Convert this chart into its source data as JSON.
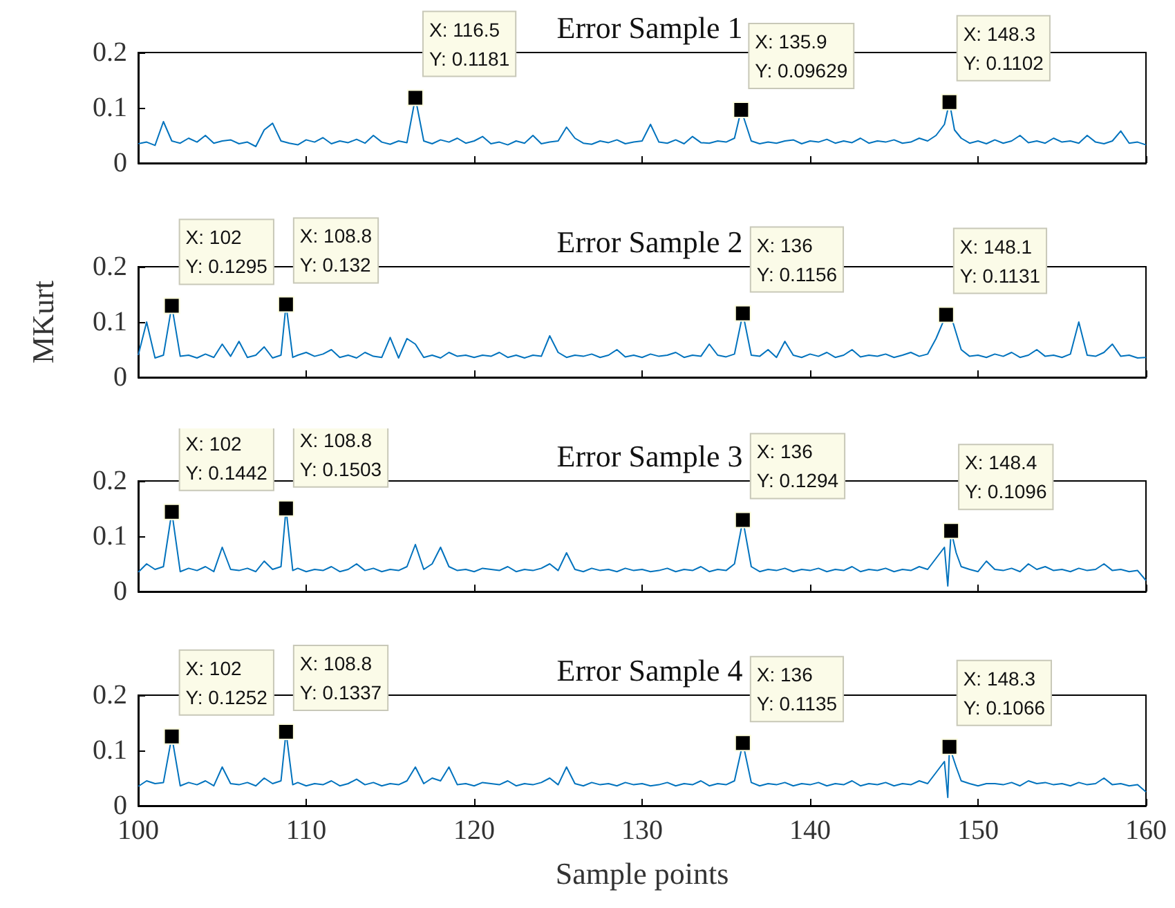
{
  "chart_data": [
    {
      "type": "line",
      "title": "Error Sample 1",
      "xlim": [
        100,
        160
      ],
      "xticks": [
        100,
        110,
        120,
        130,
        140,
        150,
        160
      ],
      "ylim": [
        0,
        0.2
      ],
      "yticks": [
        0,
        0.1,
        0.2
      ],
      "tick_labels": "y",
      "series": [
        {
          "color": "#0072bd",
          "x": [
            100,
            100.5,
            101,
            101.5,
            102,
            102.5,
            103,
            103.5,
            104,
            104.5,
            105,
            105.5,
            106,
            106.5,
            107,
            107.5,
            108,
            108.5,
            109,
            109.5,
            110,
            110.5,
            111,
            111.5,
            112,
            112.5,
            113,
            113.5,
            114,
            114.5,
            115,
            115.5,
            116,
            116.5,
            117,
            117.5,
            118,
            118.5,
            119,
            119.5,
            120,
            120.5,
            121,
            121.5,
            122,
            122.5,
            123,
            123.5,
            124,
            124.5,
            125,
            125.5,
            126,
            126.5,
            127,
            127.5,
            128,
            128.5,
            129,
            129.5,
            130,
            130.5,
            131,
            131.5,
            132,
            132.5,
            133,
            133.5,
            134,
            134.5,
            135,
            135.5,
            135.9,
            136.5,
            137,
            137.5,
            138,
            138.5,
            139,
            139.5,
            140,
            140.5,
            141,
            141.5,
            142,
            142.5,
            143,
            143.5,
            144,
            144.5,
            145,
            145.5,
            146,
            146.5,
            147,
            147.5,
            148,
            148.3,
            148.6,
            149,
            149.5,
            150,
            150.5,
            151,
            151.5,
            152,
            152.5,
            153,
            153.5,
            154,
            154.5,
            155,
            155.5,
            156,
            156.5,
            157,
            157.5,
            158,
            158.5,
            159,
            159.5,
            160
          ],
          "values": [
            0.035,
            0.038,
            0.032,
            0.075,
            0.04,
            0.036,
            0.045,
            0.038,
            0.05,
            0.036,
            0.04,
            0.042,
            0.035,
            0.038,
            0.03,
            0.06,
            0.072,
            0.04,
            0.036,
            0.033,
            0.042,
            0.038,
            0.046,
            0.035,
            0.04,
            0.037,
            0.043,
            0.036,
            0.05,
            0.038,
            0.034,
            0.04,
            0.037,
            0.1181,
            0.04,
            0.035,
            0.042,
            0.038,
            0.045,
            0.036,
            0.04,
            0.048,
            0.035,
            0.038,
            0.033,
            0.04,
            0.036,
            0.05,
            0.035,
            0.038,
            0.04,
            0.065,
            0.045,
            0.036,
            0.034,
            0.04,
            0.037,
            0.042,
            0.035,
            0.038,
            0.04,
            0.07,
            0.038,
            0.036,
            0.042,
            0.035,
            0.048,
            0.037,
            0.036,
            0.04,
            0.038,
            0.045,
            0.09629,
            0.04,
            0.035,
            0.038,
            0.036,
            0.04,
            0.042,
            0.035,
            0.04,
            0.038,
            0.043,
            0.036,
            0.04,
            0.037,
            0.045,
            0.036,
            0.04,
            0.038,
            0.042,
            0.036,
            0.038,
            0.045,
            0.04,
            0.05,
            0.07,
            0.1102,
            0.06,
            0.045,
            0.036,
            0.04,
            0.035,
            0.042,
            0.036,
            0.04,
            0.05,
            0.037,
            0.04,
            0.036,
            0.045,
            0.038,
            0.04,
            0.036,
            0.05,
            0.038,
            0.035,
            0.04,
            0.058,
            0.036,
            0.038,
            0.033
          ]
        }
      ],
      "annotations": [
        {
          "text": "X: 116.5\nY: 0.1181",
          "x": 116.5,
          "y": 0.1181
        },
        {
          "text": "X: 135.9\nY: 0.09629",
          "x": 135.9,
          "y": 0.09629
        },
        {
          "text": "X: 148.3\nY: 0.1102",
          "x": 148.3,
          "y": 0.1102
        }
      ]
    },
    {
      "type": "line",
      "title": "Error Sample 2",
      "ylabel": "MKurt",
      "xlim": [
        100,
        160
      ],
      "xticks": [
        100,
        110,
        120,
        130,
        140,
        150,
        160
      ],
      "ylim": [
        0,
        0.2
      ],
      "yticks": [
        0,
        0.1,
        0.2
      ],
      "tick_labels": "y",
      "series": [
        {
          "color": "#0072bd",
          "x": [
            100,
            100.5,
            101,
            101.5,
            102,
            102.5,
            103,
            103.5,
            104,
            104.5,
            105,
            105.5,
            106,
            106.5,
            107,
            107.5,
            108,
            108.5,
            108.8,
            109.2,
            109.5,
            110,
            110.5,
            111,
            111.5,
            112,
            112.5,
            113,
            113.5,
            114,
            114.5,
            115,
            115.5,
            116,
            116.5,
            117,
            117.5,
            118,
            118.5,
            119,
            119.5,
            120,
            120.5,
            121,
            121.5,
            122,
            122.5,
            123,
            123.5,
            124,
            124.5,
            125,
            125.5,
            126,
            126.5,
            127,
            127.5,
            128,
            128.5,
            129,
            129.5,
            130,
            130.5,
            131,
            131.5,
            132,
            132.5,
            133,
            133.5,
            134,
            134.5,
            135,
            135.5,
            136,
            136.5,
            137,
            137.5,
            138,
            138.5,
            139,
            139.5,
            140,
            140.5,
            141,
            141.5,
            142,
            142.5,
            143,
            143.5,
            144,
            144.5,
            145,
            145.5,
            146,
            146.5,
            147,
            147.5,
            148.1,
            148.5,
            149,
            149.5,
            150,
            150.5,
            151,
            151.5,
            152,
            152.5,
            153,
            153.5,
            154,
            154.5,
            155,
            155.5,
            156,
            156.5,
            157,
            157.5,
            158,
            158.5,
            159,
            159.5,
            160
          ],
          "values": [
            0.04,
            0.1,
            0.035,
            0.04,
            0.1295,
            0.038,
            0.04,
            0.035,
            0.042,
            0.036,
            0.06,
            0.038,
            0.065,
            0.036,
            0.04,
            0.055,
            0.035,
            0.04,
            0.132,
            0.036,
            0.04,
            0.045,
            0.038,
            0.042,
            0.05,
            0.036,
            0.04,
            0.035,
            0.045,
            0.038,
            0.036,
            0.072,
            0.035,
            0.07,
            0.06,
            0.036,
            0.04,
            0.035,
            0.045,
            0.038,
            0.04,
            0.036,
            0.04,
            0.038,
            0.045,
            0.036,
            0.04,
            0.035,
            0.04,
            0.038,
            0.075,
            0.045,
            0.036,
            0.04,
            0.038,
            0.042,
            0.036,
            0.04,
            0.05,
            0.037,
            0.04,
            0.036,
            0.042,
            0.038,
            0.04,
            0.045,
            0.036,
            0.04,
            0.038,
            0.06,
            0.04,
            0.037,
            0.042,
            0.1156,
            0.04,
            0.038,
            0.05,
            0.036,
            0.065,
            0.04,
            0.036,
            0.042,
            0.038,
            0.045,
            0.036,
            0.04,
            0.05,
            0.037,
            0.04,
            0.038,
            0.042,
            0.036,
            0.04,
            0.045,
            0.038,
            0.042,
            0.07,
            0.1131,
            0.1,
            0.05,
            0.038,
            0.04,
            0.036,
            0.042,
            0.038,
            0.045,
            0.036,
            0.04,
            0.05,
            0.038,
            0.04,
            0.036,
            0.042,
            0.1,
            0.04,
            0.038,
            0.045,
            0.06,
            0.038,
            0.04,
            0.035,
            0.036
          ]
        }
      ],
      "annotations": [
        {
          "text": "X: 102\nY: 0.1295",
          "x": 102,
          "y": 0.1295
        },
        {
          "text": "X: 108.8\nY: 0.132",
          "x": 108.8,
          "y": 0.132
        },
        {
          "text": "X: 136\nY: 0.1156",
          "x": 136,
          "y": 0.1156
        },
        {
          "text": "X: 148.1\nY: 0.1131",
          "x": 148.1,
          "y": 0.1131
        }
      ]
    },
    {
      "type": "line",
      "title": "Error Sample 3",
      "xlim": [
        100,
        160
      ],
      "xticks": [
        100,
        110,
        120,
        130,
        140,
        150,
        160
      ],
      "ylim": [
        0,
        0.2
      ],
      "yticks": [
        0,
        0.1,
        0.2
      ],
      "tick_labels": "y",
      "series": [
        {
          "color": "#0072bd",
          "x": [
            100,
            100.5,
            101,
            101.5,
            102,
            102.5,
            103,
            103.5,
            104,
            104.5,
            105,
            105.5,
            106,
            106.5,
            107,
            107.5,
            108,
            108.5,
            108.8,
            109.2,
            109.5,
            110,
            110.5,
            111,
            111.5,
            112,
            112.5,
            113,
            113.5,
            114,
            114.5,
            115,
            115.5,
            116,
            116.5,
            117,
            117.5,
            118,
            118.5,
            119,
            119.5,
            120,
            120.5,
            121,
            121.5,
            122,
            122.5,
            123,
            123.5,
            124,
            124.5,
            125,
            125.5,
            126,
            126.5,
            127,
            127.5,
            128,
            128.5,
            129,
            129.5,
            130,
            130.5,
            131,
            131.5,
            132,
            132.5,
            133,
            133.5,
            134,
            134.5,
            135,
            135.5,
            136,
            136.5,
            137,
            137.5,
            138,
            138.5,
            139,
            139.5,
            140,
            140.5,
            141,
            141.5,
            142,
            142.5,
            143,
            143.5,
            144,
            144.5,
            145,
            145.5,
            146,
            146.5,
            147,
            147.5,
            148,
            148.2,
            148.4,
            148.7,
            149,
            149.5,
            150,
            150.5,
            151,
            151.5,
            152,
            152.5,
            153,
            153.5,
            154,
            154.5,
            155,
            155.5,
            156,
            156.5,
            157,
            157.5,
            158,
            158.5,
            159,
            159.5,
            160
          ],
          "values": [
            0.035,
            0.05,
            0.04,
            0.045,
            0.1442,
            0.036,
            0.042,
            0.038,
            0.045,
            0.036,
            0.08,
            0.04,
            0.038,
            0.042,
            0.036,
            0.055,
            0.04,
            0.045,
            0.1503,
            0.038,
            0.042,
            0.036,
            0.04,
            0.038,
            0.045,
            0.036,
            0.04,
            0.05,
            0.038,
            0.042,
            0.036,
            0.04,
            0.038,
            0.045,
            0.085,
            0.04,
            0.05,
            0.08,
            0.045,
            0.038,
            0.04,
            0.036,
            0.042,
            0.04,
            0.038,
            0.045,
            0.036,
            0.04,
            0.038,
            0.042,
            0.05,
            0.038,
            0.07,
            0.04,
            0.036,
            0.042,
            0.038,
            0.04,
            0.036,
            0.042,
            0.038,
            0.04,
            0.036,
            0.038,
            0.042,
            0.036,
            0.04,
            0.038,
            0.045,
            0.036,
            0.04,
            0.038,
            0.05,
            0.1294,
            0.045,
            0.036,
            0.04,
            0.038,
            0.042,
            0.036,
            0.04,
            0.038,
            0.042,
            0.036,
            0.04,
            0.038,
            0.045,
            0.036,
            0.04,
            0.038,
            0.042,
            0.036,
            0.04,
            0.038,
            0.045,
            0.04,
            0.06,
            0.08,
            0.01,
            0.1096,
            0.07,
            0.045,
            0.04,
            0.036,
            0.055,
            0.04,
            0.038,
            0.042,
            0.036,
            0.05,
            0.04,
            0.045,
            0.038,
            0.04,
            0.036,
            0.042,
            0.038,
            0.04,
            0.05,
            0.038,
            0.04,
            0.036,
            0.038,
            0.02
          ]
        }
      ],
      "annotations": [
        {
          "text": "X: 102\nY: 0.1442",
          "x": 102,
          "y": 0.1442
        },
        {
          "text": "X: 108.8\nY: 0.1503",
          "x": 108.8,
          "y": 0.1503
        },
        {
          "text": "X: 136\nY: 0.1294",
          "x": 136,
          "y": 0.1294
        },
        {
          "text": "X: 148.4\nY: 0.1096",
          "x": 148.4,
          "y": 0.1096
        }
      ]
    },
    {
      "type": "line",
      "title": "Error Sample 4",
      "xlabel": "Sample points",
      "xlim": [
        100,
        160
      ],
      "xticks": [
        100,
        110,
        120,
        130,
        140,
        150,
        160
      ],
      "ylim": [
        0,
        0.2
      ],
      "yticks": [
        0,
        0.1,
        0.2
      ],
      "series": [
        {
          "color": "#0072bd",
          "x": [
            100,
            100.5,
            101,
            101.5,
            102,
            102.5,
            103,
            103.5,
            104,
            104.5,
            105,
            105.5,
            106,
            106.5,
            107,
            107.5,
            108,
            108.5,
            108.8,
            109.2,
            109.5,
            110,
            110.5,
            111,
            111.5,
            112,
            112.5,
            113,
            113.5,
            114,
            114.5,
            115,
            115.5,
            116,
            116.5,
            117,
            117.5,
            118,
            118.5,
            119,
            119.5,
            120,
            120.5,
            121,
            121.5,
            122,
            122.5,
            123,
            123.5,
            124,
            124.5,
            125,
            125.5,
            126,
            126.5,
            127,
            127.5,
            128,
            128.5,
            129,
            129.5,
            130,
            130.5,
            131,
            131.5,
            132,
            132.5,
            133,
            133.5,
            134,
            134.5,
            135,
            135.5,
            136,
            136.5,
            137,
            137.5,
            138,
            138.5,
            139,
            139.5,
            140,
            140.5,
            141,
            141.5,
            142,
            142.5,
            143,
            143.5,
            144,
            144.5,
            145,
            145.5,
            146,
            146.5,
            147,
            147.5,
            148,
            148.2,
            148.3,
            148.7,
            149,
            149.5,
            150,
            150.5,
            151,
            151.5,
            152,
            152.5,
            153,
            153.5,
            154,
            154.5,
            155,
            155.5,
            156,
            156.5,
            157,
            157.5,
            158,
            158.5,
            159,
            159.5,
            160
          ],
          "values": [
            0.035,
            0.045,
            0.04,
            0.042,
            0.1252,
            0.036,
            0.042,
            0.038,
            0.045,
            0.036,
            0.07,
            0.04,
            0.038,
            0.042,
            0.036,
            0.05,
            0.04,
            0.045,
            0.1337,
            0.038,
            0.042,
            0.036,
            0.04,
            0.038,
            0.045,
            0.036,
            0.04,
            0.048,
            0.038,
            0.042,
            0.036,
            0.04,
            0.038,
            0.045,
            0.07,
            0.04,
            0.05,
            0.045,
            0.07,
            0.038,
            0.04,
            0.036,
            0.042,
            0.04,
            0.038,
            0.045,
            0.036,
            0.04,
            0.038,
            0.042,
            0.05,
            0.038,
            0.07,
            0.04,
            0.036,
            0.042,
            0.038,
            0.04,
            0.036,
            0.042,
            0.038,
            0.04,
            0.036,
            0.038,
            0.042,
            0.036,
            0.04,
            0.038,
            0.045,
            0.036,
            0.04,
            0.038,
            0.045,
            0.1135,
            0.042,
            0.036,
            0.04,
            0.038,
            0.042,
            0.036,
            0.04,
            0.038,
            0.042,
            0.036,
            0.04,
            0.038,
            0.045,
            0.036,
            0.04,
            0.038,
            0.042,
            0.036,
            0.04,
            0.038,
            0.045,
            0.04,
            0.06,
            0.08,
            0.015,
            0.1066,
            0.07,
            0.045,
            0.04,
            0.036,
            0.04,
            0.04,
            0.038,
            0.042,
            0.036,
            0.045,
            0.04,
            0.042,
            0.038,
            0.04,
            0.036,
            0.042,
            0.038,
            0.04,
            0.05,
            0.038,
            0.04,
            0.036,
            0.038,
            0.025
          ]
        }
      ],
      "annotations": [
        {
          "text": "X: 102\nY: 0.1252",
          "x": 102,
          "y": 0.1252
        },
        {
          "text": "X: 108.8\nY: 0.1337",
          "x": 108.8,
          "y": 0.1337
        },
        {
          "text": "X: 136\nY: 0.1135",
          "x": 136,
          "y": 0.1135
        },
        {
          "text": "X: 148.3\nY: 0.1066",
          "x": 148.3,
          "y": 0.1066
        }
      ]
    }
  ]
}
